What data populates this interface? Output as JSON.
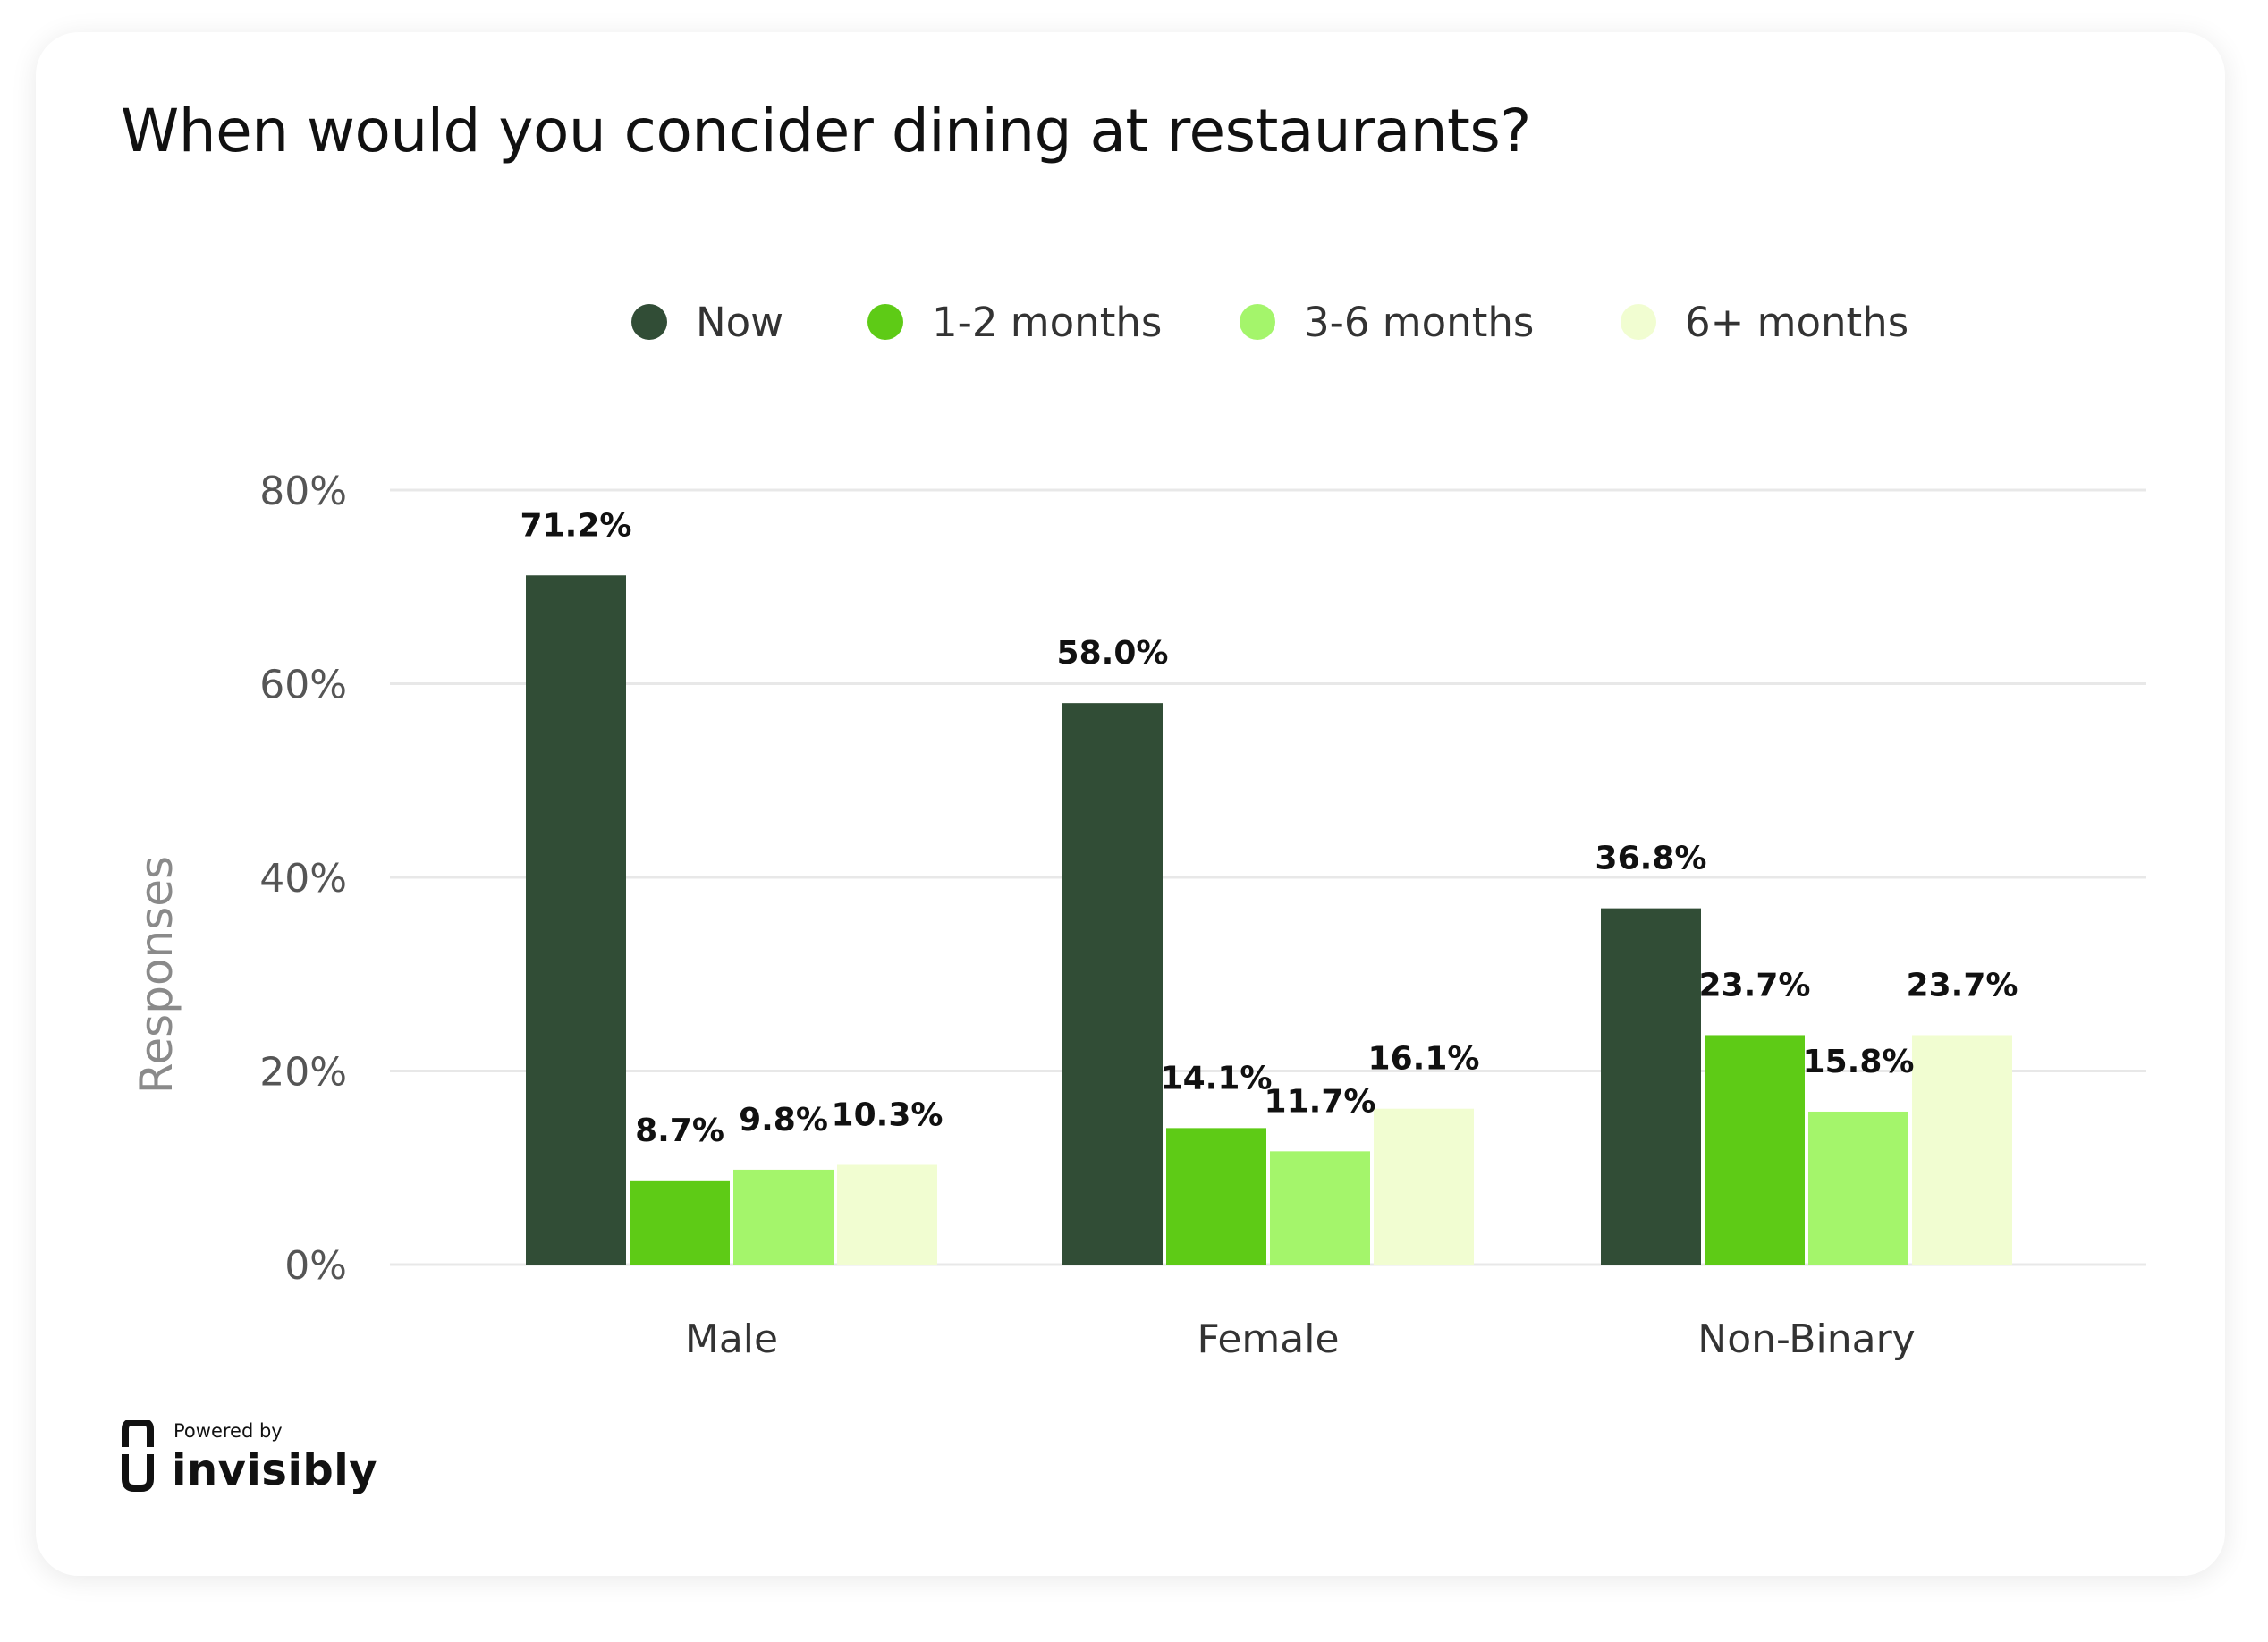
{
  "title": "When would you concider dining at restaurants?",
  "branding": {
    "powered_by": "Powered by",
    "name": "invisibly"
  },
  "colors": {
    "now": "#314d36",
    "one_two_months": "#5ecb16",
    "three_six_months": "#a4f56b",
    "six_plus_months": "#f1fdd1",
    "grid": "#e8e8e8"
  },
  "chart_data": {
    "type": "bar",
    "title": "When would you concider dining at restaurants?",
    "xlabel": "",
    "ylabel": "Responses",
    "ylim": [
      0,
      80
    ],
    "yticks": [
      "0%",
      "20%",
      "40%",
      "60%",
      "80%"
    ],
    "ytick_values": [
      0,
      20,
      40,
      60,
      80
    ],
    "grid": true,
    "legend_position": "top-center",
    "categories": [
      "Male",
      "Female",
      "Non-Binary"
    ],
    "series": [
      {
        "name": "Now",
        "color": "#314d36",
        "values": [
          71.2,
          58.0,
          36.8
        ],
        "labels": [
          "71.2%",
          "58.0%",
          "36.8%"
        ]
      },
      {
        "name": "1-2 months",
        "color": "#5ecb16",
        "values": [
          8.7,
          14.1,
          23.7
        ],
        "labels": [
          "8.7%",
          "14.1%",
          "23.7%"
        ]
      },
      {
        "name": "3-6 months",
        "color": "#a4f56b",
        "values": [
          9.8,
          11.7,
          15.8
        ],
        "labels": [
          "9.8%",
          "11.7%",
          "15.8%"
        ]
      },
      {
        "name": "6+ months",
        "color": "#f1fdd1",
        "values": [
          10.3,
          16.1,
          23.7
        ],
        "labels": [
          "10.3%",
          "16.1%",
          "23.7%"
        ]
      }
    ]
  }
}
